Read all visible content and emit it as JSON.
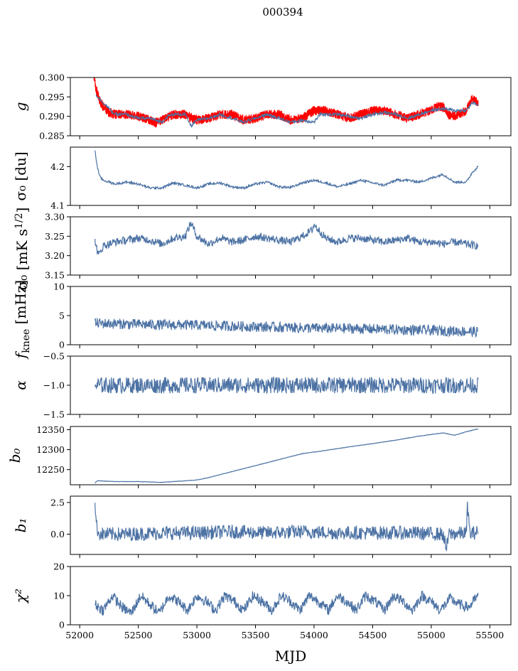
{
  "figure": {
    "title": "000394",
    "xlabel": "MJD"
  },
  "colors": {
    "series_main": "#4c72a4",
    "series_overlay": "#ff0000"
  },
  "chart_data": [
    {
      "type": "line",
      "ylabel": "g",
      "xlim": [
        51920,
        55680
      ],
      "ylim": [
        0.285,
        0.3
      ],
      "yticks": [
        "0.285",
        "0.290",
        "0.295",
        "0.300"
      ],
      "yticks_v": [
        0.285,
        0.29,
        0.295,
        0.3
      ],
      "series": [
        {
          "color": "#ff0000",
          "x": [
            52120,
            52140,
            52170,
            52200,
            52250,
            52300,
            52400,
            52500,
            52600,
            52650,
            52700,
            52800,
            52900,
            53000,
            53100,
            53200,
            53300,
            53400,
            53500,
            53600,
            53700,
            53800,
            53900,
            54000,
            54100,
            54200,
            54300,
            54400,
            54500,
            54600,
            54700,
            54800,
            54900,
            55000,
            55050,
            55100,
            55150,
            55200,
            55300,
            55350,
            55400
          ],
          "y": [
            0.3,
            0.297,
            0.294,
            0.2925,
            0.291,
            0.2905,
            0.2905,
            0.29,
            0.289,
            0.2885,
            0.289,
            0.2905,
            0.2905,
            0.289,
            0.2895,
            0.2905,
            0.2905,
            0.289,
            0.2895,
            0.2905,
            0.2905,
            0.289,
            0.2895,
            0.2915,
            0.2915,
            0.2905,
            0.2895,
            0.2905,
            0.2915,
            0.2915,
            0.2905,
            0.2895,
            0.2905,
            0.2915,
            0.2925,
            0.2925,
            0.2905,
            0.29,
            0.2915,
            0.2945,
            0.2935
          ],
          "band": 0.0012
        },
        {
          "color": "#4c72a4",
          "x": [
            52140,
            52200,
            52300,
            52400,
            52500,
            52600,
            52700,
            52750,
            52800,
            52900,
            52950,
            53000,
            53100,
            53200,
            53300,
            53400,
            53500,
            53600,
            53700,
            53800,
            53900,
            54000,
            54050,
            54100,
            54200,
            54300,
            54400,
            54500,
            54600,
            54700,
            54800,
            54900,
            55000,
            55100,
            55200,
            55300,
            55350,
            55400
          ],
          "y": [
            0.2955,
            0.2935,
            0.2905,
            0.2905,
            0.2895,
            0.2895,
            0.2885,
            0.29,
            0.2905,
            0.2905,
            0.2875,
            0.289,
            0.2895,
            0.2905,
            0.2895,
            0.2885,
            0.2895,
            0.2905,
            0.2895,
            0.2885,
            0.289,
            0.2885,
            0.2905,
            0.2905,
            0.2905,
            0.29,
            0.2895,
            0.2905,
            0.291,
            0.2905,
            0.2895,
            0.2905,
            0.2915,
            0.292,
            0.2915,
            0.2915,
            0.2935,
            0.293
          ],
          "band": 0.0004
        }
      ]
    },
    {
      "type": "line",
      "ylabel": "σ₀ [du]",
      "xlim": [
        51920,
        55680
      ],
      "ylim": [
        4.1,
        4.25
      ],
      "yticks": [
        "4.1",
        "4.2"
      ],
      "yticks_v": [
        4.1,
        4.2
      ],
      "series": [
        {
          "color": "#4c72a4",
          "x": [
            52130,
            52150,
            52170,
            52200,
            52250,
            52300,
            52400,
            52500,
            52600,
            52700,
            52800,
            52900,
            53000,
            53100,
            53200,
            53300,
            53400,
            53500,
            53600,
            53700,
            53800,
            53900,
            54000,
            54100,
            54200,
            54300,
            54400,
            54500,
            54600,
            54700,
            54800,
            54900,
            55000,
            55100,
            55200,
            55300,
            55350,
            55400
          ],
          "y": [
            4.24,
            4.2,
            4.175,
            4.165,
            4.16,
            4.155,
            4.16,
            4.155,
            4.145,
            4.145,
            4.158,
            4.152,
            4.145,
            4.155,
            4.158,
            4.148,
            4.145,
            4.155,
            4.16,
            4.148,
            4.146,
            4.158,
            4.165,
            4.158,
            4.148,
            4.155,
            4.165,
            4.158,
            4.152,
            4.165,
            4.165,
            4.16,
            4.17,
            4.18,
            4.16,
            4.16,
            4.185,
            4.2
          ],
          "band": 0.003
        }
      ]
    },
    {
      "type": "line",
      "ylabel": "σ₀ [mK s^1/2]",
      "xlim": [
        51920,
        55680
      ],
      "ylim": [
        3.15,
        3.3
      ],
      "yticks": [
        "3.15",
        "3.20",
        "3.25",
        "3.30"
      ],
      "yticks_v": [
        3.15,
        3.2,
        3.25,
        3.3
      ],
      "series": [
        {
          "color": "#4c72a4",
          "x": [
            52130,
            52160,
            52200,
            52300,
            52400,
            52500,
            52600,
            52700,
            52800,
            52900,
            52950,
            53000,
            53100,
            53200,
            53300,
            53400,
            53500,
            53600,
            53700,
            53800,
            53900,
            53980,
            54000,
            54100,
            54200,
            54300,
            54400,
            54500,
            54600,
            54700,
            54800,
            54900,
            55000,
            55100,
            55200,
            55300,
            55400
          ],
          "y": [
            3.24,
            3.2,
            3.225,
            3.235,
            3.24,
            3.245,
            3.24,
            3.23,
            3.245,
            3.25,
            3.285,
            3.25,
            3.23,
            3.245,
            3.235,
            3.24,
            3.25,
            3.245,
            3.24,
            3.235,
            3.25,
            3.265,
            3.28,
            3.245,
            3.235,
            3.245,
            3.245,
            3.24,
            3.235,
            3.24,
            3.245,
            3.235,
            3.235,
            3.23,
            3.235,
            3.23,
            3.225
          ],
          "band": 0.01
        }
      ]
    },
    {
      "type": "line",
      "ylabel": "f_knee [mHz]",
      "xlim": [
        51920,
        55680
      ],
      "ylim": [
        0,
        10
      ],
      "yticks": [
        "0",
        "5",
        "10"
      ],
      "yticks_v": [
        0,
        5,
        10
      ],
      "series": [
        {
          "color": "#4c72a4",
          "x": [
            52130,
            52300,
            52500,
            52700,
            52900,
            53100,
            53300,
            53500,
            53700,
            53900,
            54100,
            54300,
            54500,
            54700,
            54900,
            55100,
            55300,
            55400
          ],
          "y": [
            3.7,
            3.6,
            3.5,
            3.4,
            3.4,
            3.3,
            3.2,
            3.1,
            3.0,
            2.9,
            2.8,
            2.8,
            2.7,
            2.6,
            2.5,
            2.4,
            2.3,
            2.2
          ],
          "band": 0.9
        }
      ]
    },
    {
      "type": "line",
      "ylabel": "α",
      "xlim": [
        51920,
        55680
      ],
      "ylim": [
        -1.5,
        -0.5
      ],
      "yticks": [
        "−1.5",
        "−1.0",
        "−0.5"
      ],
      "yticks_v": [
        -1.5,
        -1.0,
        -0.5
      ],
      "series": [
        {
          "color": "#4c72a4",
          "x": [
            52130,
            55400
          ],
          "y": [
            -1.0,
            -1.0
          ],
          "band": 0.14
        }
      ]
    },
    {
      "type": "line",
      "ylabel": "b₀",
      "xlim": [
        51920,
        55680
      ],
      "ylim": [
        12212,
        12358
      ],
      "yticks": [
        "12250",
        "12300",
        "12350"
      ],
      "yticks_v": [
        12250,
        12300,
        12350
      ],
      "series": [
        {
          "color": "#4c72a4",
          "x": [
            52130,
            52150,
            52300,
            52500,
            52700,
            52900,
            53000,
            53100,
            53300,
            53500,
            53700,
            53900,
            54100,
            54300,
            54500,
            54700,
            54900,
            55100,
            55200,
            55300,
            55400
          ],
          "y": [
            12216,
            12222,
            12220,
            12220,
            12218,
            12222,
            12224,
            12230,
            12245,
            12260,
            12275,
            12290,
            12298,
            12307,
            12315,
            12324,
            12334,
            12342,
            12336,
            12345,
            12352
          ],
          "band": 0.5
        }
      ]
    },
    {
      "type": "line",
      "ylabel": "b₁",
      "xlim": [
        51920,
        55680
      ],
      "ylim": [
        -1.6,
        3.0
      ],
      "yticks": [
        "0.0",
        "2.5"
      ],
      "yticks_v": [
        0.0,
        2.5
      ],
      "series": [
        {
          "color": "#4c72a4",
          "x": [
            52130,
            52140,
            52160,
            52200,
            52400,
            52700,
            53000,
            53300,
            53600,
            53900,
            54200,
            54500,
            54800,
            55100,
            55130,
            55150,
            55300,
            55310,
            55330,
            55400
          ],
          "y": [
            2.7,
            0.8,
            0.1,
            0.0,
            0.0,
            0.1,
            0.1,
            0.2,
            0.1,
            0.2,
            0.1,
            0.1,
            0.1,
            0.0,
            -1.2,
            0.0,
            0.1,
            2.3,
            0.0,
            0.2
          ],
          "band": 0.55
        }
      ]
    },
    {
      "type": "line",
      "ylabel": "χ²",
      "xlim": [
        51920,
        55680
      ],
      "ylim": [
        0,
        20
      ],
      "yticks": [
        "0",
        "10",
        "20"
      ],
      "yticks_v": [
        0,
        10,
        20
      ],
      "series": [
        {
          "color": "#4c72a4",
          "x": [
            52130,
            52200,
            52280,
            52360,
            52440,
            52520,
            52600,
            52680,
            52760,
            52840,
            52920,
            53000,
            53080,
            53160,
            53240,
            53320,
            53400,
            53480,
            53560,
            53640,
            53720,
            53800,
            53880,
            53960,
            54040,
            54120,
            54200,
            54280,
            54360,
            54440,
            54520,
            54600,
            54680,
            54760,
            54840,
            54920,
            55000,
            55080,
            55160,
            55240,
            55320,
            55400
          ],
          "y": [
            7,
            5,
            10,
            6,
            4,
            10,
            7,
            4,
            10,
            8,
            5,
            10,
            8,
            5,
            10,
            8,
            5,
            10,
            8,
            5,
            10,
            8,
            5,
            10,
            8,
            5,
            10,
            8,
            5,
            10,
            8,
            5,
            10,
            8,
            5,
            10,
            8,
            5,
            9,
            7,
            6,
            10
          ],
          "band": 1.8
        }
      ]
    }
  ],
  "xaxis": {
    "ticks": [
      "52000",
      "52500",
      "53000",
      "53500",
      "54000",
      "54500",
      "55000",
      "55500"
    ],
    "ticks_v": [
      52000,
      52500,
      53000,
      53500,
      54000,
      54500,
      55000,
      55500
    ]
  }
}
